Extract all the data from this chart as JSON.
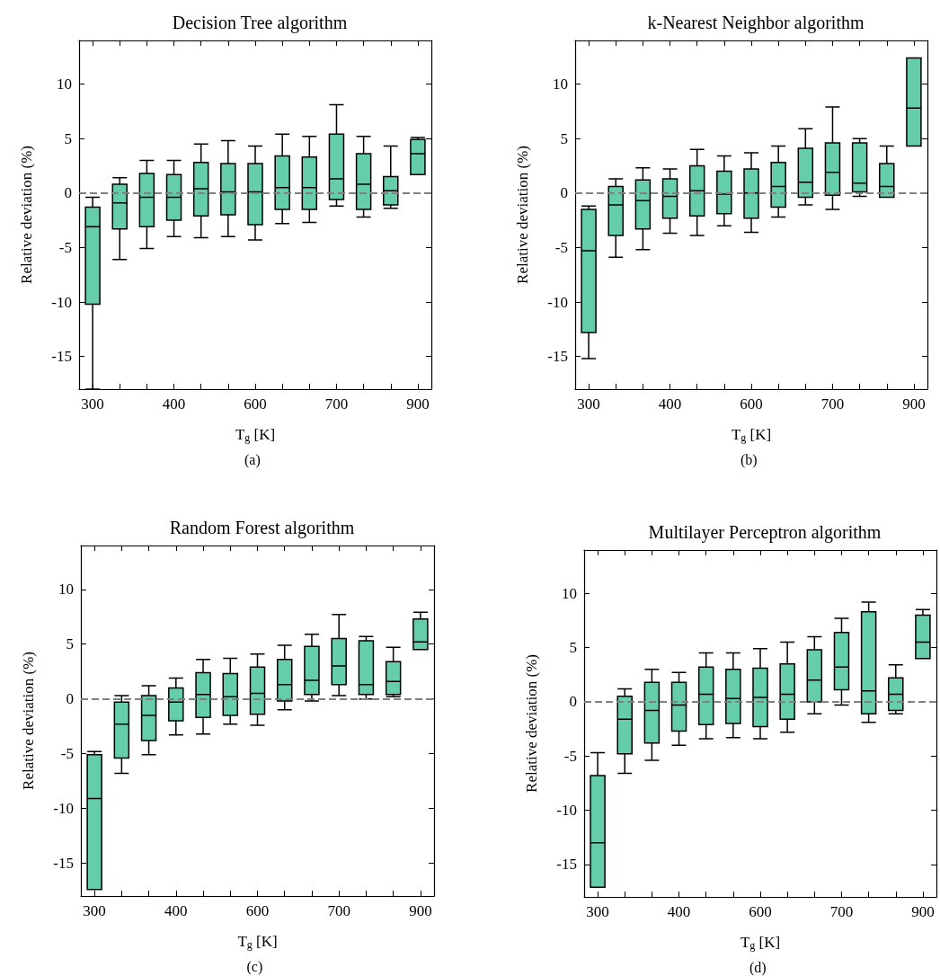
{
  "chart_data": [
    {
      "type": "box",
      "title": "Decision Tree algorithm",
      "xlabel": "T$_{g}$ [K]",
      "ylabel": "Relative deviation (%)",
      "annotations": [
        "(a)"
      ],
      "categories": [
        "300",
        null,
        null,
        "400",
        null,
        null,
        "600",
        null,
        null,
        "700",
        null,
        null,
        "900"
      ],
      "ylim": [
        -18,
        14
      ],
      "yticks": [
        -15,
        -10,
        -5,
        0,
        5,
        10
      ],
      "grid": false,
      "legend": false,
      "series": [
        {
          "color": "#66cdaa",
          "boxes": [
            {
              "low": -18,
              "q1": -10.2,
              "median": -3.1,
              "q3": -1.3,
              "high": -0.4
            },
            {
              "low": -6.1,
              "q1": -3.3,
              "median": -0.9,
              "q3": 0.8,
              "high": 1.4
            },
            {
              "low": -5.1,
              "q1": -3.1,
              "median": -0.4,
              "q3": 1.8,
              "high": 3.0
            },
            {
              "low": -4.0,
              "q1": -2.5,
              "median": -0.4,
              "q3": 1.7,
              "high": 3.0
            },
            {
              "low": -4.1,
              "q1": -2.1,
              "median": 0.4,
              "q3": 2.8,
              "high": 4.5
            },
            {
              "low": -4.0,
              "q1": -2.0,
              "median": 0.1,
              "q3": 2.7,
              "high": 4.8
            },
            {
              "low": -4.3,
              "q1": -2.9,
              "median": 0.1,
              "q3": 2.7,
              "high": 4.3
            },
            {
              "low": -2.8,
              "q1": -1.5,
              "median": 0.5,
              "q3": 3.4,
              "high": 5.4
            },
            {
              "low": -2.7,
              "q1": -1.5,
              "median": 0.5,
              "q3": 3.3,
              "high": 5.2
            },
            {
              "low": -1.2,
              "q1": -0.6,
              "median": 1.3,
              "q3": 5.4,
              "high": 8.1
            },
            {
              "low": -2.2,
              "q1": -1.5,
              "median": 0.8,
              "q3": 3.6,
              "high": 5.2
            },
            {
              "low": -1.4,
              "q1": -1.1,
              "median": 0.2,
              "q3": 1.5,
              "high": 4.3
            },
            {
              "low": 1.7,
              "q1": 1.7,
              "median": 3.6,
              "q3": 4.9,
              "high": 5.1
            }
          ]
        }
      ],
      "ref_lines": [
        {
          "axis": "y",
          "value": 0,
          "color": "#808080",
          "line_style": "dashed"
        }
      ]
    },
    {
      "type": "box",
      "title": "k-Nearest Neighbor algorithm",
      "xlabel": "T$_{g}$ [K]",
      "ylabel": "Relative deviation (%)",
      "annotations": [
        "(b)"
      ],
      "categories": [
        "300",
        null,
        null,
        "400",
        null,
        null,
        "600",
        null,
        null,
        "700",
        null,
        null,
        "900"
      ],
      "ylim": [
        -18,
        14
      ],
      "yticks": [
        -15,
        -10,
        -5,
        0,
        5,
        10
      ],
      "grid": false,
      "legend": false,
      "series": [
        {
          "color": "#66cdaa",
          "boxes": [
            {
              "low": -15.2,
              "q1": -12.8,
              "median": -5.3,
              "q3": -1.5,
              "high": -1.2
            },
            {
              "low": -5.9,
              "q1": -3.9,
              "median": -1.1,
              "q3": 0.6,
              "high": 1.3
            },
            {
              "low": -5.2,
              "q1": -3.3,
              "median": -0.7,
              "q3": 1.2,
              "high": 2.3
            },
            {
              "low": -3.7,
              "q1": -2.3,
              "median": -0.3,
              "q3": 1.3,
              "high": 2.2
            },
            {
              "low": -3.9,
              "q1": -2.1,
              "median": 0.2,
              "q3": 2.5,
              "high": 4.0
            },
            {
              "low": -3.0,
              "q1": -1.9,
              "median": -0.1,
              "q3": 2.0,
              "high": 3.4
            },
            {
              "low": -3.6,
              "q1": -2.3,
              "median": 0.0,
              "q3": 2.2,
              "high": 3.7
            },
            {
              "low": -2.2,
              "q1": -1.3,
              "median": 0.6,
              "q3": 2.8,
              "high": 4.3
            },
            {
              "low": -1.1,
              "q1": -0.4,
              "median": 1.0,
              "q3": 4.1,
              "high": 5.9
            },
            {
              "low": -1.5,
              "q1": -0.2,
              "median": 1.9,
              "q3": 4.6,
              "high": 7.9
            },
            {
              "low": -0.3,
              "q1": 0.1,
              "median": 0.9,
              "q3": 4.6,
              "high": 5.0
            },
            {
              "low": -0.4,
              "q1": -0.4,
              "median": 0.6,
              "q3": 2.7,
              "high": 4.3
            },
            {
              "low": 4.3,
              "q1": 4.3,
              "median": 7.8,
              "q3": 12.4,
              "high": 12.4
            }
          ]
        }
      ],
      "ref_lines": [
        {
          "axis": "y",
          "value": 0,
          "color": "#808080",
          "line_style": "dashed"
        }
      ]
    },
    {
      "type": "box",
      "title": "Random Forest algorithm",
      "xlabel": "T$_{g}$ [K]",
      "ylabel": "Relative deviation (%)",
      "annotations": [
        "(c)"
      ],
      "categories": [
        "300",
        null,
        null,
        "400",
        null,
        null,
        "600",
        null,
        null,
        "700",
        null,
        null,
        "900"
      ],
      "ylim": [
        -18,
        14
      ],
      "yticks": [
        -15,
        -10,
        -5,
        0,
        5,
        10
      ],
      "grid": false,
      "legend": false,
      "series": [
        {
          "color": "#66cdaa",
          "boxes": [
            {
              "low": -17.4,
              "q1": -17.4,
              "median": -9.1,
              "q3": -5.1,
              "high": -4.8
            },
            {
              "low": -6.8,
              "q1": -5.4,
              "median": -2.3,
              "q3": -0.3,
              "high": 0.3
            },
            {
              "low": -5.1,
              "q1": -3.8,
              "median": -1.5,
              "q3": 0.3,
              "high": 1.2
            },
            {
              "low": -3.3,
              "q1": -2.0,
              "median": -0.3,
              "q3": 1.0,
              "high": 1.9
            },
            {
              "low": -3.2,
              "q1": -1.7,
              "median": 0.4,
              "q3": 2.4,
              "high": 3.6
            },
            {
              "low": -2.3,
              "q1": -1.5,
              "median": 0.2,
              "q3": 2.3,
              "high": 3.7
            },
            {
              "low": -2.4,
              "q1": -1.4,
              "median": 0.5,
              "q3": 2.9,
              "high": 4.1
            },
            {
              "low": -1.0,
              "q1": -0.2,
              "median": 1.3,
              "q3": 3.6,
              "high": 4.9
            },
            {
              "low": -0.2,
              "q1": 0.4,
              "median": 1.7,
              "q3": 4.8,
              "high": 5.9
            },
            {
              "low": 0.3,
              "q1": 1.3,
              "median": 3.0,
              "q3": 5.5,
              "high": 7.7
            },
            {
              "low": 0.0,
              "q1": 0.4,
              "median": 1.3,
              "q3": 5.3,
              "high": 5.7
            },
            {
              "low": 0.2,
              "q1": 0.4,
              "median": 1.6,
              "q3": 3.4,
              "high": 4.7
            },
            {
              "low": 4.5,
              "q1": 4.5,
              "median": 5.2,
              "q3": 7.3,
              "high": 7.9
            }
          ]
        }
      ],
      "ref_lines": [
        {
          "axis": "y",
          "value": 0,
          "color": "#808080",
          "line_style": "dashed"
        }
      ]
    },
    {
      "type": "box",
      "title": "Multilayer Perceptron algorithm",
      "xlabel": "T$_{g}$ [K]",
      "ylabel": "Relative deviation (%)",
      "annotations": [
        "(d)"
      ],
      "categories": [
        "300",
        null,
        null,
        "400",
        null,
        null,
        "600",
        null,
        null,
        "700",
        null,
        null,
        "900"
      ],
      "ylim": [
        -18,
        14
      ],
      "yticks": [
        -15,
        -10,
        -5,
        0,
        5,
        10
      ],
      "grid": false,
      "legend": false,
      "series": [
        {
          "color": "#66cdaa",
          "boxes": [
            {
              "low": -17.1,
              "q1": -17.1,
              "median": -13.0,
              "q3": -6.8,
              "high": -4.7
            },
            {
              "low": -6.6,
              "q1": -4.8,
              "median": -1.6,
              "q3": 0.5,
              "high": 1.2
            },
            {
              "low": -5.4,
              "q1": -3.8,
              "median": -0.8,
              "q3": 1.8,
              "high": 3.0
            },
            {
              "low": -4.0,
              "q1": -2.7,
              "median": -0.3,
              "q3": 1.8,
              "high": 2.7
            },
            {
              "low": -3.4,
              "q1": -2.1,
              "median": 0.7,
              "q3": 3.2,
              "high": 4.5
            },
            {
              "low": -3.3,
              "q1": -2.0,
              "median": 0.3,
              "q3": 3.0,
              "high": 4.5
            },
            {
              "low": -3.4,
              "q1": -2.3,
              "median": 0.4,
              "q3": 3.1,
              "high": 4.9
            },
            {
              "low": -2.8,
              "q1": -1.6,
              "median": 0.7,
              "q3": 3.5,
              "high": 5.5
            },
            {
              "low": -1.1,
              "q1": 0.0,
              "median": 2.0,
              "q3": 4.8,
              "high": 6.0
            },
            {
              "low": -0.3,
              "q1": 1.1,
              "median": 3.2,
              "q3": 6.4,
              "high": 7.7
            },
            {
              "low": -1.9,
              "q1": -1.1,
              "median": 1.0,
              "q3": 8.3,
              "high": 9.2
            },
            {
              "low": -1.1,
              "q1": -0.8,
              "median": 0.7,
              "q3": 2.2,
              "high": 3.4
            },
            {
              "low": 4.0,
              "q1": 4.0,
              "median": 5.5,
              "q3": 8.0,
              "high": 8.5
            }
          ]
        }
      ],
      "ref_lines": [
        {
          "axis": "y",
          "value": 0,
          "color": "#808080",
          "line_style": "dashed"
        }
      ]
    }
  ]
}
